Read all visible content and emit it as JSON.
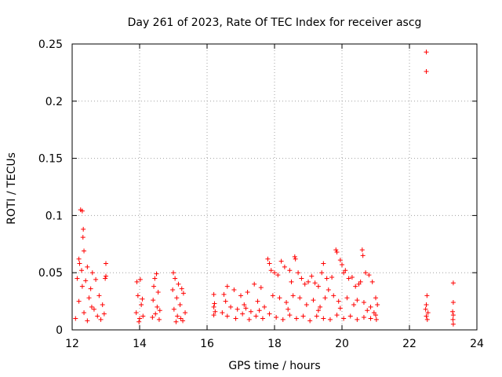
{
  "chart_data": {
    "type": "scatter",
    "title": "Day 261 of 2023, Rate Of TEC Index for receiver ascg",
    "xlabel": "GPS time / hours",
    "ylabel": "ROTI / TECUs",
    "xlim": [
      12,
      24
    ],
    "ylim": [
      0,
      0.25
    ],
    "xticks": [
      12,
      14,
      16,
      18,
      20,
      22,
      24
    ],
    "xtick_labels": [
      "12",
      "14",
      "16",
      "18",
      "20",
      "22",
      "24"
    ],
    "yticks": [
      0,
      0.05,
      0.1,
      0.15,
      0.2,
      0.25
    ],
    "ytick_labels": [
      "0",
      "0.05",
      "0.1",
      "0.15",
      "0.2",
      "0.25"
    ],
    "grid": true,
    "marker": "+",
    "color": "#ff0000",
    "series": [
      {
        "name": "ROTI",
        "points": [
          [
            12.25,
            0.105
          ],
          [
            12.3,
            0.104
          ],
          [
            12.33,
            0.088
          ],
          [
            12.32,
            0.081
          ],
          [
            12.35,
            0.069
          ],
          [
            12.2,
            0.062
          ],
          [
            12.22,
            0.058
          ],
          [
            12.28,
            0.052
          ],
          [
            12.45,
            0.055
          ],
          [
            12.6,
            0.05
          ],
          [
            12.15,
            0.045
          ],
          [
            12.4,
            0.043
          ],
          [
            12.7,
            0.044
          ],
          [
            13.0,
            0.058
          ],
          [
            13.0,
            0.047
          ],
          [
            12.98,
            0.045
          ],
          [
            12.3,
            0.038
          ],
          [
            12.55,
            0.036
          ],
          [
            12.8,
            0.03
          ],
          [
            12.5,
            0.028
          ],
          [
            12.2,
            0.025
          ],
          [
            12.9,
            0.022
          ],
          [
            12.65,
            0.018
          ],
          [
            12.35,
            0.015
          ],
          [
            12.75,
            0.012
          ],
          [
            12.1,
            0.01
          ],
          [
            12.45,
            0.008
          ],
          [
            12.85,
            0.009
          ],
          [
            12.95,
            0.014
          ],
          [
            12.58,
            0.02
          ],
          [
            13.92,
            0.042
          ],
          [
            14.02,
            0.044
          ],
          [
            13.95,
            0.03
          ],
          [
            14.05,
            0.022
          ],
          [
            13.9,
            0.015
          ],
          [
            14.0,
            0.01
          ],
          [
            14.1,
            0.012
          ],
          [
            14.08,
            0.027
          ],
          [
            13.98,
            0.007
          ],
          [
            14.5,
            0.049
          ],
          [
            14.45,
            0.045
          ],
          [
            14.42,
            0.038
          ],
          [
            14.55,
            0.033
          ],
          [
            14.4,
            0.026
          ],
          [
            14.52,
            0.02
          ],
          [
            14.47,
            0.014
          ],
          [
            14.58,
            0.009
          ],
          [
            14.38,
            0.011
          ],
          [
            14.6,
            0.017
          ],
          [
            15.0,
            0.05
          ],
          [
            15.05,
            0.045
          ],
          [
            15.15,
            0.04
          ],
          [
            14.98,
            0.035
          ],
          [
            15.25,
            0.036
          ],
          [
            15.3,
            0.032
          ],
          [
            15.1,
            0.028
          ],
          [
            15.2,
            0.022
          ],
          [
            15.02,
            0.018
          ],
          [
            15.35,
            0.015
          ],
          [
            15.12,
            0.012
          ],
          [
            15.28,
            0.008
          ],
          [
            15.08,
            0.007
          ],
          [
            15.22,
            0.01
          ],
          [
            16.2,
            0.031
          ],
          [
            16.22,
            0.023
          ],
          [
            16.2,
            0.02
          ],
          [
            16.24,
            0.016
          ],
          [
            16.2,
            0.013
          ],
          [
            16.5,
            0.031
          ],
          [
            16.6,
            0.038
          ],
          [
            16.8,
            0.035
          ],
          [
            17.0,
            0.03
          ],
          [
            17.2,
            0.033
          ],
          [
            17.4,
            0.04
          ],
          [
            17.6,
            0.037
          ],
          [
            17.8,
            0.062
          ],
          [
            17.85,
            0.058
          ],
          [
            17.9,
            0.052
          ],
          [
            18.0,
            0.05
          ],
          [
            18.1,
            0.048
          ],
          [
            18.2,
            0.06
          ],
          [
            18.3,
            0.055
          ],
          [
            18.45,
            0.052
          ],
          [
            18.6,
            0.064
          ],
          [
            18.62,
            0.062
          ],
          [
            18.5,
            0.042
          ],
          [
            18.7,
            0.05
          ],
          [
            18.8,
            0.045
          ],
          [
            18.9,
            0.04
          ],
          [
            19.0,
            0.042
          ],
          [
            19.1,
            0.047
          ],
          [
            19.2,
            0.041
          ],
          [
            19.3,
            0.038
          ],
          [
            19.4,
            0.05
          ],
          [
            19.45,
            0.058
          ],
          [
            19.55,
            0.045
          ],
          [
            19.6,
            0.035
          ],
          [
            19.7,
            0.046
          ],
          [
            19.82,
            0.07
          ],
          [
            19.85,
            0.068
          ],
          [
            19.95,
            0.061
          ],
          [
            20.0,
            0.057
          ],
          [
            20.1,
            0.052
          ],
          [
            20.05,
            0.05
          ],
          [
            20.2,
            0.045
          ],
          [
            20.3,
            0.046
          ],
          [
            20.4,
            0.038
          ],
          [
            20.5,
            0.04
          ],
          [
            20.55,
            0.042
          ],
          [
            20.6,
            0.07
          ],
          [
            20.62,
            0.065
          ],
          [
            20.7,
            0.05
          ],
          [
            20.8,
            0.048
          ],
          [
            20.9,
            0.042
          ],
          [
            21.0,
            0.028
          ],
          [
            21.05,
            0.022
          ],
          [
            16.55,
            0.025
          ],
          [
            16.7,
            0.02
          ],
          [
            16.9,
            0.018
          ],
          [
            17.1,
            0.022
          ],
          [
            17.3,
            0.016
          ],
          [
            17.5,
            0.025
          ],
          [
            17.7,
            0.02
          ],
          [
            17.95,
            0.03
          ],
          [
            18.15,
            0.028
          ],
          [
            18.35,
            0.024
          ],
          [
            18.55,
            0.03
          ],
          [
            18.75,
            0.028
          ],
          [
            18.95,
            0.022
          ],
          [
            19.15,
            0.026
          ],
          [
            19.35,
            0.02
          ],
          [
            19.5,
            0.028
          ],
          [
            19.75,
            0.03
          ],
          [
            19.9,
            0.025
          ],
          [
            20.15,
            0.028
          ],
          [
            20.35,
            0.022
          ],
          [
            20.45,
            0.026
          ],
          [
            20.65,
            0.024
          ],
          [
            20.85,
            0.02
          ],
          [
            20.95,
            0.015
          ],
          [
            16.6,
            0.012
          ],
          [
            16.85,
            0.01
          ],
          [
            17.05,
            0.014
          ],
          [
            17.25,
            0.009
          ],
          [
            17.45,
            0.012
          ],
          [
            17.65,
            0.01
          ],
          [
            17.85,
            0.014
          ],
          [
            18.05,
            0.011
          ],
          [
            18.25,
            0.009
          ],
          [
            18.45,
            0.013
          ],
          [
            18.65,
            0.01
          ],
          [
            18.85,
            0.012
          ],
          [
            19.05,
            0.008
          ],
          [
            19.25,
            0.012
          ],
          [
            19.45,
            0.01
          ],
          [
            19.65,
            0.009
          ],
          [
            19.85,
            0.013
          ],
          [
            20.05,
            0.01
          ],
          [
            20.25,
            0.012
          ],
          [
            20.45,
            0.009
          ],
          [
            20.65,
            0.011
          ],
          [
            20.85,
            0.01
          ],
          [
            21.0,
            0.013
          ],
          [
            16.45,
            0.015
          ],
          [
            17.15,
            0.019
          ],
          [
            17.55,
            0.017
          ],
          [
            18.4,
            0.018
          ],
          [
            19.3,
            0.017
          ],
          [
            19.95,
            0.019
          ],
          [
            20.75,
            0.017
          ],
          [
            21.02,
            0.009
          ],
          [
            22.5,
            0.243
          ],
          [
            22.5,
            0.226
          ],
          [
            22.52,
            0.03
          ],
          [
            22.5,
            0.022
          ],
          [
            22.48,
            0.018
          ],
          [
            22.55,
            0.015
          ],
          [
            22.5,
            0.012
          ],
          [
            22.53,
            0.009
          ],
          [
            23.3,
            0.041
          ],
          [
            23.3,
            0.024
          ],
          [
            23.28,
            0.016
          ],
          [
            23.3,
            0.013
          ],
          [
            23.29,
            0.009
          ],
          [
            23.3,
            0.005
          ]
        ]
      }
    ]
  }
}
